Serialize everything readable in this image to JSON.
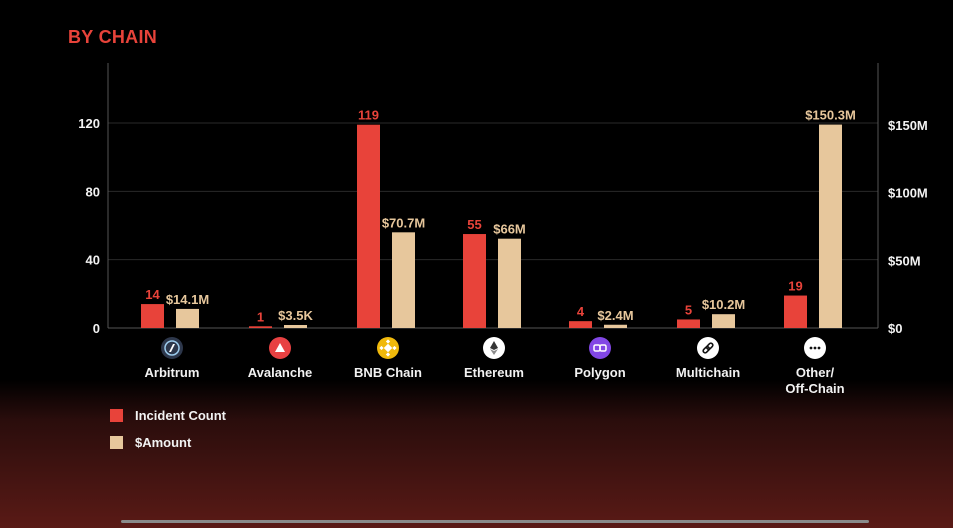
{
  "title": "BY CHAIN",
  "colors": {
    "count": "#e8433a",
    "amount": "#e7c79c",
    "title": "#e8433a"
  },
  "legend": [
    {
      "label": "Incident Count",
      "color": "#e8433a"
    },
    {
      "label": "$Amount",
      "color": "#e7c79c"
    }
  ],
  "chart_data": {
    "type": "bar",
    "categories": [
      "Arbitrum",
      "Avalanche",
      "BNB Chain",
      "Ethereum",
      "Polygon",
      "Multichain",
      "Other/\nOff-Chain"
    ],
    "category_icons": [
      "arbitrum-icon",
      "avalanche-icon",
      "bnb-icon",
      "ethereum-icon",
      "polygon-icon",
      "multichain-icon",
      "more-icon"
    ],
    "series": [
      {
        "name": "Incident Count",
        "axis": "left",
        "values": [
          14,
          1,
          119,
          55,
          4,
          5,
          19
        ],
        "labels": [
          "14",
          "1",
          "119",
          "55",
          "4",
          "5",
          "19"
        ]
      },
      {
        "name": "$Amount",
        "axis": "right",
        "values": [
          14.1,
          0.0035,
          70.7,
          66,
          2.4,
          10.2,
          150.3
        ],
        "labels": [
          "$14.1M",
          "$3.5K",
          "$70.7M",
          "$66M",
          "$2.4M",
          "$10.2M",
          "$150.3M"
        ]
      }
    ],
    "left_axis": {
      "ticks": [
        0,
        40,
        80,
        120
      ],
      "tick_labels": [
        "0",
        "40",
        "80",
        "120"
      ],
      "range": [
        0,
        150
      ]
    },
    "right_axis": {
      "ticks": [
        0,
        50,
        100,
        150
      ],
      "tick_labels": [
        "$0",
        "$50M",
        "$100M",
        "$150M"
      ],
      "range": [
        0,
        190
      ],
      "unit": "M"
    },
    "grid": true,
    "legend_position": "bottom-left"
  }
}
